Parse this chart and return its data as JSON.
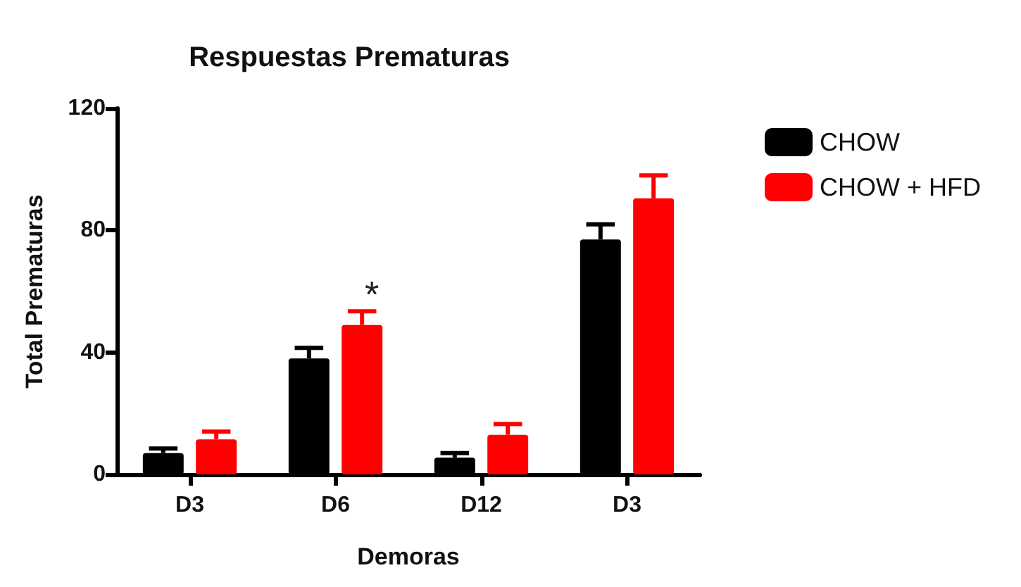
{
  "chart_data": {
    "type": "bar",
    "title": "Respuestas Prematuras",
    "xlabel": "Demoras",
    "ylabel": "Total Prematuras",
    "categories": [
      "D3",
      "D6",
      "D12",
      "D3"
    ],
    "series": [
      {
        "name": "CHOW",
        "color": "#000000",
        "values": [
          7,
          38,
          5.5,
          77
        ],
        "errors": [
          [
            7,
            8.5
          ],
          [
            38,
            41.5
          ],
          [
            5.5,
            7
          ],
          [
            77,
            82
          ]
        ]
      },
      {
        "name": "CHOW + HFD",
        "color": "#ff0000",
        "values": [
          11.5,
          49,
          13,
          90.5
        ],
        "errors": [
          [
            11.5,
            14
          ],
          [
            49,
            53.5
          ],
          [
            13,
            16.5
          ],
          [
            90.5,
            98
          ]
        ]
      }
    ],
    "annotations": [
      "*"
    ],
    "ylim": [
      0,
      120
    ],
    "yticks": [
      0,
      40,
      80,
      120
    ],
    "grid": false,
    "legend": "top right"
  }
}
